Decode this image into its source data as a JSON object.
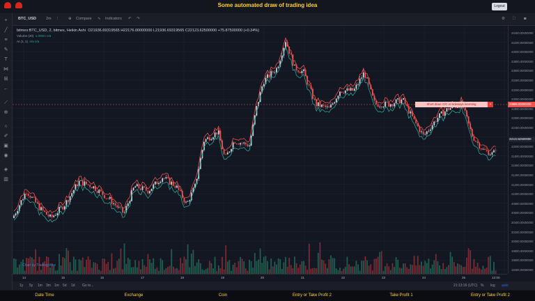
{
  "header": {
    "title": "Some automated draw of trading idea",
    "logout_label": "Logout"
  },
  "toolbar": {
    "symbol": "BTC_USD",
    "interval": "2m",
    "compare_label": "Compare",
    "indicators_label": "Indicators"
  },
  "legend": {
    "main": "bitmex:BTC_USD, 2, bitmex, Heikin Ashi",
    "ohlc": "O21936.69319565  H22176.00000000  L21936.69319565  C22123.62500000  +75.87500000 (+0.34%)",
    "volume_label": "Volume (20)",
    "volume_value": "1.000m  n/a",
    "ai_label": "AI (1, 1)",
    "ai_value": "n/a  n/a"
  },
  "watermark": "Chart by TradingView",
  "alert": {
    "text": "Short draw: C/C or sideways incoming",
    "close": "×",
    "price_label": "23865.00000000",
    "current_label": "22123.62500000"
  },
  "y_axis": [
    "24400.00000000",
    "24200.00000000",
    "24000.00000000",
    "23800.00000000",
    "23600.00000000",
    "23400.00000000",
    "23200.00000000",
    "23000.00000000",
    "22800.00000000",
    "22600.00000000",
    "22400.00000000",
    "22200.00000000",
    "22000.00000000",
    "21800.00000000",
    "21600.00000000",
    "21400.00000000",
    "21200.00000000",
    "21000.00000000",
    "20800.00000000",
    "20600.00000000",
    "20400.00000000",
    "20200.00000000",
    "20000.00000000",
    "19800.00000000",
    "19600.00000000",
    "19400.00000000"
  ],
  "x_axis": [
    "14",
    "15",
    "16",
    "17",
    "18",
    "19",
    "20",
    "21",
    "22",
    "23",
    "24",
    "25",
    "12:00"
  ],
  "range": {
    "buttons": [
      "1y",
      "5y",
      "1m",
      "3m",
      "1m",
      "5d",
      "1d",
      "Go to..."
    ],
    "time": "21:13:16 (UTC)",
    "pct": "%",
    "log": "log",
    "auto": "auto"
  },
  "bottom": [
    "Date Time",
    "Exchange",
    "Coin",
    "Entry or Take Profit 2",
    "Take Profit 1",
    "Entry or Take Profit 2"
  ],
  "chart_data": {
    "type": "candlestick",
    "ylim": [
      19300,
      24500
    ],
    "x": [
      "14",
      "15",
      "16",
      "17",
      "18",
      "19",
      "20",
      "21",
      "22",
      "23",
      "24",
      "25"
    ],
    "close": [
      20300,
      20100,
      20500,
      21200,
      20900,
      21400,
      22800,
      23700,
      23200,
      23500,
      22600,
      22500
    ]
  },
  "colors": {
    "up": "#d1d4dc",
    "down": "#ef5350",
    "band_up": "#26a69a",
    "band_dn": "#ef5350"
  }
}
